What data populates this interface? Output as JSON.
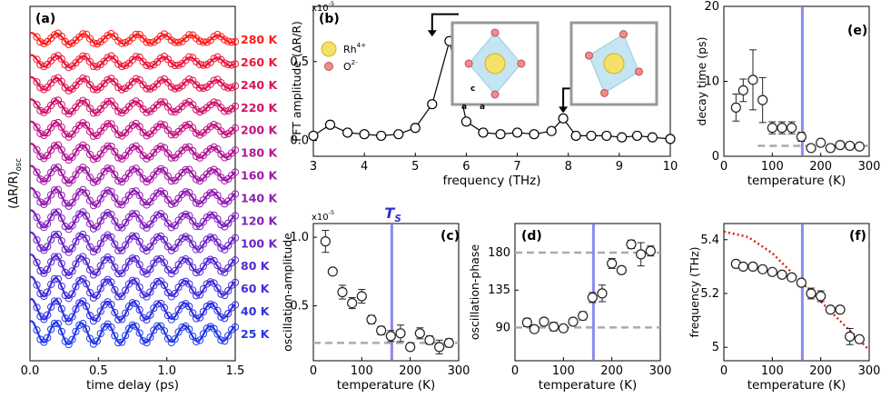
{
  "chart_data": [
    {
      "panel": "(a)",
      "type": "line",
      "xlabel": "time delay (ps)",
      "ylabel": "(ΔR/R)",
      "ylabel_sub": "osc",
      "xlim": [
        0,
        1.5
      ],
      "xticks": [
        "0.0",
        "0.5",
        "1.0",
        "1.5"
      ],
      "note": "vertically offset traces; open circles = data, solid lines = fits",
      "series": [
        {
          "name": "280 K",
          "color": "#ff1a1a",
          "amplitude": 0.25,
          "frequency_thz": 5.1
        },
        {
          "name": "260 K",
          "color": "#ef1535",
          "amplitude": 0.3,
          "frequency_thz": 5.12
        },
        {
          "name": "240 K",
          "color": "#df1250",
          "amplitude": 0.35,
          "frequency_thz": 5.14
        },
        {
          "name": "220 K",
          "color": "#cf126a",
          "amplitude": 0.4,
          "frequency_thz": 5.2
        },
        {
          "name": "200 K",
          "color": "#c21280",
          "amplitude": 0.45,
          "frequency_thz": 5.22
        },
        {
          "name": "180 K",
          "color": "#b21595",
          "amplitude": 0.5,
          "frequency_thz": 5.23
        },
        {
          "name": "160 K",
          "color": "#a018a5",
          "amplitude": 0.55,
          "frequency_thz": 5.24
        },
        {
          "name": "140 K",
          "color": "#901cb2",
          "amplitude": 0.6,
          "frequency_thz": 5.26
        },
        {
          "name": "120 K",
          "color": "#7e20bd",
          "amplitude": 0.65,
          "frequency_thz": 5.28
        },
        {
          "name": "100 K",
          "color": "#6a24c8",
          "amplitude": 0.7,
          "frequency_thz": 5.29
        },
        {
          "name": "80 K",
          "color": "#5528d2",
          "amplitude": 0.75,
          "frequency_thz": 5.3
        },
        {
          "name": "60 K",
          "color": "#412cdc",
          "amplitude": 0.8,
          "frequency_thz": 5.3
        },
        {
          "name": "40 K",
          "color": "#2e30e4",
          "amplitude": 0.85,
          "frequency_thz": 5.3
        },
        {
          "name": "25 K",
          "color": "#2038ea",
          "amplitude": 0.9,
          "frequency_thz": 5.31
        }
      ]
    },
    {
      "panel": "(b)",
      "type": "line",
      "xlabel": "frequency (THz)",
      "ylabel": "FFT amplitude (ΔR/R)",
      "scale_note": "x10",
      "scale_exp": "-5",
      "xlim": [
        3,
        10
      ],
      "ylim": [
        -0.1,
        0.85
      ],
      "xticks": [
        3,
        4,
        5,
        6,
        7,
        8,
        9,
        10
      ],
      "yticks": [
        "0.0",
        "0.5"
      ],
      "x": [
        3.0,
        3.33,
        3.67,
        4.0,
        4.33,
        4.67,
        5.0,
        5.33,
        5.67,
        6.0,
        6.33,
        6.67,
        7.0,
        7.33,
        7.67,
        7.9,
        8.15,
        8.45,
        8.75,
        9.05,
        9.35,
        9.65,
        10.0
      ],
      "y": [
        0.03,
        0.1,
        0.05,
        0.04,
        0.03,
        0.04,
        0.08,
        0.23,
        0.63,
        0.12,
        0.05,
        0.04,
        0.05,
        0.04,
        0.06,
        0.14,
        0.03,
        0.03,
        0.03,
        0.02,
        0.03,
        0.02,
        0.01
      ],
      "legend": [
        "Rh",
        "O"
      ],
      "legend_sup": [
        "4+",
        "2-"
      ],
      "axes_labels": [
        "c",
        "a",
        "a"
      ]
    },
    {
      "panel": "(c)",
      "type": "scatter",
      "xlabel": "temperature (K)",
      "ylabel": "oscillation-amplitude",
      "scale_note": "x10",
      "scale_exp": "-5",
      "xlim": [
        0,
        300
      ],
      "ylim": [
        0.1,
        1.1
      ],
      "xticks": [
        0,
        100,
        200,
        300
      ],
      "yticks": [
        "0.5",
        "1.0"
      ],
      "x": [
        25,
        40,
        60,
        80,
        100,
        120,
        140,
        160,
        180,
        200,
        220,
        240,
        260,
        280
      ],
      "y": [
        0.97,
        0.75,
        0.6,
        0.52,
        0.57,
        0.4,
        0.32,
        0.28,
        0.3,
        0.2,
        0.3,
        0.25,
        0.2,
        0.23
      ],
      "err": [
        0.08,
        0.02,
        0.05,
        0.04,
        0.05,
        0.03,
        0.03,
        0.04,
        0.06,
        0.02,
        0.04,
        0.03,
        0.05,
        0.03
      ],
      "hline": 0.23,
      "vline": 162,
      "vline_label": "T",
      "vline_label_sub": "S"
    },
    {
      "panel": "(d)",
      "type": "scatter",
      "xlabel": "temperature (K)",
      "ylabel": "oscillation-phase",
      "xlim": [
        0,
        300
      ],
      "ylim": [
        50,
        215
      ],
      "xticks": [
        0,
        100,
        200,
        300
      ],
      "yticks": [
        90,
        135,
        180
      ],
      "x": [
        25,
        40,
        60,
        80,
        100,
        120,
        140,
        160,
        180,
        200,
        220,
        240,
        260,
        280
      ],
      "y": [
        96,
        88,
        97,
        91,
        89,
        97,
        104,
        126,
        131,
        167,
        159,
        190,
        178,
        182
      ],
      "err": [
        5,
        3,
        4,
        5,
        3,
        4,
        5,
        6,
        10,
        6,
        4,
        5,
        14,
        6
      ],
      "hlines": [
        90,
        180
      ],
      "vline": 162
    },
    {
      "panel": "(e)",
      "type": "scatter",
      "xlabel": "temperature (K)",
      "ylabel": "decay time (ps)",
      "xlim": [
        0,
        300
      ],
      "ylim": [
        0,
        20
      ],
      "xticks": [
        0,
        100,
        200,
        300
      ],
      "yticks": [
        0,
        10,
        20
      ],
      "x": [
        25,
        40,
        60,
        80,
        100,
        120,
        140,
        160,
        180,
        200,
        220,
        240,
        260,
        280
      ],
      "y": [
        6.5,
        8.8,
        10.2,
        7.5,
        3.8,
        3.8,
        3.8,
        2.6,
        1.1,
        1.8,
        1.1,
        1.5,
        1.4,
        1.3
      ],
      "err": [
        1.8,
        1.5,
        4.0,
        3.0,
        0.8,
        0.8,
        0.8,
        0.6,
        0.3,
        0.4,
        0.3,
        0.3,
        0.4,
        0.3
      ],
      "hline": 1.4,
      "hline_xstart": 70,
      "vline": 162
    },
    {
      "panel": "(f)",
      "type": "scatter",
      "xlabel": "temperature (K)",
      "ylabel": "frequency (THz)",
      "xlim": [
        0,
        300
      ],
      "ylim": [
        4.95,
        5.46
      ],
      "xticks": [
        0,
        100,
        200,
        300
      ],
      "yticks": [
        "5",
        "5.2",
        "5.4"
      ],
      "x": [
        25,
        40,
        60,
        80,
        100,
        120,
        140,
        160,
        180,
        200,
        220,
        240,
        260,
        280
      ],
      "y": [
        5.31,
        5.3,
        5.3,
        5.29,
        5.28,
        5.27,
        5.26,
        5.24,
        5.2,
        5.19,
        5.14,
        5.14,
        5.04,
        5.03
      ],
      "err": [
        0.01,
        0.01,
        0.01,
        0.01,
        0.01,
        0.01,
        0.01,
        0.01,
        0.02,
        0.02,
        0.01,
        0.01,
        0.03,
        0.01
      ],
      "fit_curve": {
        "type": "dotted",
        "t": [
          0,
          50,
          100,
          150,
          200,
          250,
          300
        ],
        "f": [
          5.43,
          5.41,
          5.35,
          5.26,
          5.17,
          5.08,
          4.99
        ]
      },
      "vline": 162
    }
  ],
  "colors": {
    "vline": "#8a8aee",
    "dashed": "#aaaaaa",
    "fit": "#e0201a",
    "marker": "#222222",
    "octahedron": "#bfe3f2",
    "rh": "#f5e06a",
    "o": "#ef8c8c"
  }
}
